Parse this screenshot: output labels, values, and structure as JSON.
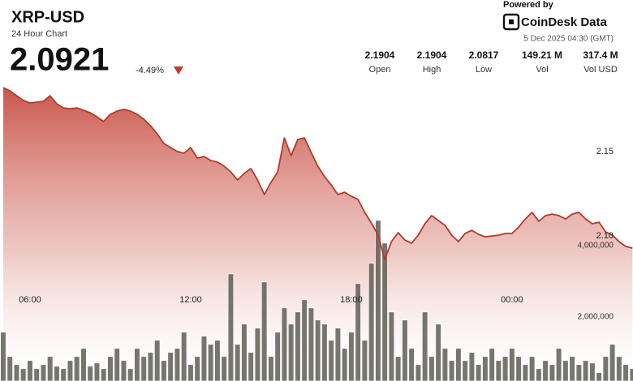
{
  "header": {
    "symbol": "XRP-USD",
    "subtitle": "24 Hour Chart",
    "price": "2.0921",
    "change": "-4.49%",
    "powered_by": "Powered by",
    "brand": "CoinDesk Data",
    "timestamp": "5 Dec 2025 04:30 (GMT)",
    "stats": [
      {
        "value": "2.1904",
        "label": "Open"
      },
      {
        "value": "2.1904",
        "label": "High"
      },
      {
        "value": "2.0817",
        "label": "Low"
      },
      {
        "value": "149.21 M",
        "label": "Vol"
      },
      {
        "value": "317.4 M",
        "label": "Vol USD"
      }
    ]
  },
  "chart_data": {
    "type": "line",
    "x": [
      5,
      5.25,
      5.5,
      5.75,
      6,
      6.25,
      6.5,
      6.75,
      7,
      7.25,
      7.5,
      7.75,
      8,
      8.25,
      8.5,
      8.75,
      9,
      9.25,
      9.5,
      9.75,
      10,
      10.25,
      10.5,
      10.75,
      11,
      11.25,
      11.5,
      11.75,
      12,
      12.25,
      12.5,
      12.75,
      13,
      13.25,
      13.5,
      13.75,
      14,
      14.25,
      14.5,
      14.75,
      15,
      15.25,
      15.5,
      15.75,
      16,
      16.25,
      16.5,
      16.75,
      17,
      17.25,
      17.5,
      17.75,
      18,
      18.25,
      18.5,
      18.75,
      19,
      19.25,
      19.5,
      19.75,
      20,
      20.25,
      20.5,
      20.75,
      21,
      21.25,
      21.5,
      21.75,
      22,
      22.25,
      22.5,
      22.75,
      23,
      23.25,
      23.5,
      23.75,
      24,
      24.25,
      24.5,
      24.75,
      25,
      25.25,
      25.5,
      25.75,
      26,
      26.25,
      26.5,
      26.75,
      27,
      27.25,
      27.5,
      27.75,
      28,
      28.25,
      28.5
    ],
    "series": [
      {
        "type": "line",
        "color": "#b5382b",
        "values": [
          2.1879,
          2.186,
          2.1831,
          2.1803,
          2.1788,
          2.1793,
          2.1798,
          2.1831,
          2.1783,
          2.1759,
          2.1754,
          2.1759,
          2.1745,
          2.173,
          2.1706,
          2.1678,
          2.1721,
          2.174,
          2.175,
          2.174,
          2.1721,
          2.1692,
          2.1653,
          2.1605,
          2.1548,
          2.1524,
          2.15,
          2.149,
          2.1524,
          2.1461,
          2.1471,
          2.1447,
          2.1437,
          2.1413,
          2.1379,
          2.1331,
          2.137,
          2.1399,
          2.1331,
          2.1245,
          2.1317,
          2.1379,
          2.1581,
          2.1475,
          2.1572,
          2.1581,
          2.1495,
          2.1413,
          2.1351,
          2.1302,
          2.1245,
          2.1259,
          2.1235,
          2.1216,
          2.1139,
          2.1076,
          2.1004,
          2.086,
          2.0966,
          2.1019,
          2.0975,
          2.0956,
          2.1004,
          2.1072,
          2.112,
          2.1091,
          2.1062,
          2.1004,
          2.0966,
          2.1014,
          2.1033,
          2.1009,
          2.0994,
          2.0999,
          2.1004,
          2.1014,
          2.1014,
          2.1052,
          2.11,
          2.1139,
          2.1086,
          2.112,
          2.1129,
          2.112,
          2.11,
          2.1129,
          2.1139,
          2.11,
          2.1072,
          2.1081,
          2.1023,
          2.1004,
          2.0966,
          2.0937,
          2.0927
        ]
      },
      {
        "type": "bar",
        "axis": "y2",
        "color": "#5e5e56",
        "values": [
          1568000,
          886000,
          659000,
          545000,
          773000,
          545000,
          659000,
          886000,
          613000,
          545000,
          773000,
          886000,
          1114000,
          613000,
          704000,
          545000,
          886000,
          1114000,
          773000,
          545000,
          1114000,
          886000,
          1000000,
          1341000,
          773000,
          1000000,
          1114000,
          1568000,
          659000,
          886000,
          1455000,
          1227000,
          1341000,
          886000,
          3204000,
          1227000,
          1795000,
          1000000,
          1682000,
          2977000,
          886000,
          1568000,
          2250000,
          1795000,
          2136000,
          2477000,
          2250000,
          1909000,
          1795000,
          1341000,
          1682000,
          1114000,
          1568000,
          2932000,
          1341000,
          3500000,
          4704000,
          4068000,
          2136000,
          886000,
          1909000,
          1114000,
          659000,
          2136000,
          886000,
          1795000,
          1114000,
          773000,
          1114000,
          773000,
          1000000,
          659000,
          886000,
          1114000,
          773000,
          886000,
          1114000,
          886000,
          659000,
          886000,
          545000,
          773000,
          659000,
          1114000,
          773000,
          886000,
          659000,
          773000,
          704000,
          432000,
          886000,
          1227000,
          886000,
          659000,
          545000
        ]
      }
    ],
    "xlim": [
      4.88,
      28.52
    ],
    "xticks": [
      {
        "value": 6,
        "label": "06:00"
      },
      {
        "value": 12,
        "label": "12:00"
      },
      {
        "value": 18,
        "label": "18:00"
      },
      {
        "value": 24,
        "label": "00:00"
      }
    ],
    "ylim": [
      2.0139,
      2.1894
    ],
    "yticks": [
      2.15,
      {
        "value": 2.1,
        "label": "2.10"
      }
    ],
    "y2lim": [
      200000,
      8500000
    ],
    "y2ticks": [
      {
        "value": 2000000,
        "label": "2,000,000"
      },
      {
        "value": 4000000,
        "label": "4,000,000"
      }
    ]
  }
}
